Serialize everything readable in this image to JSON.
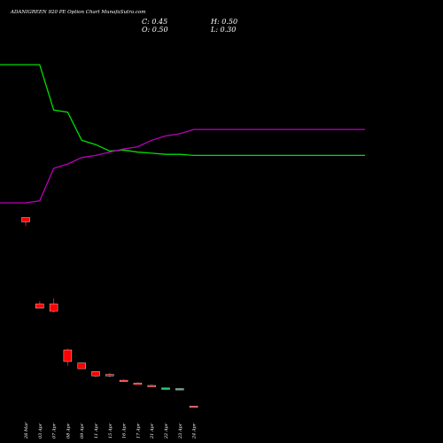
{
  "chart_data": {
    "type": "candlestick",
    "title": "ADANIGREEN 920 PE Option Chart MunafaSutra.com",
    "ohlc_summary": {
      "close_label": "C: 0.45",
      "high_label": "H: 0.50",
      "open_label": "O: 0.50",
      "low_label": "L: 0.30"
    },
    "categories": [
      "28 Mar",
      "03 Apr",
      "07 Apr",
      "08 Apr",
      "09 Apr",
      "11 Apr",
      "15 Apr",
      "16 Apr",
      "17 Apr",
      "21 Apr",
      "22 Apr",
      "23 Apr",
      "24 Apr"
    ],
    "candles": [
      {
        "date": "28 Mar",
        "open": 66.0,
        "high": 66.0,
        "low": 63.0,
        "close": 64.5
      },
      {
        "date": "03 Apr",
        "open": 36.0,
        "high": 37.0,
        "low": 34.5,
        "close": 34.5
      },
      {
        "date": "07 Apr",
        "open": 36.0,
        "high": 38.0,
        "low": 33.0,
        "close": 33.5
      },
      {
        "date": "08 Apr",
        "open": 20.0,
        "high": 20.5,
        "low": 14.5,
        "close": 16.0
      },
      {
        "date": "09 Apr",
        "open": 15.5,
        "high": 15.5,
        "low": 13.5,
        "close": 13.5
      },
      {
        "date": "11 Apr",
        "open": 12.5,
        "high": 12.5,
        "low": 10.5,
        "close": 11.0
      },
      {
        "date": "15 Apr",
        "open": 11.5,
        "high": 12.0,
        "low": 10.5,
        "close": 11.0
      },
      {
        "date": "16 Apr",
        "open": 9.5,
        "high": 9.8,
        "low": 9.0,
        "close": 9.2
      },
      {
        "date": "17 Apr",
        "open": 8.5,
        "high": 8.8,
        "low": 8.0,
        "close": 8.0
      },
      {
        "date": "21 Apr",
        "open": 7.7,
        "high": 8.0,
        "low": 7.3,
        "close": 7.6
      },
      {
        "date": "22 Apr",
        "open": 6.6,
        "high": 6.9,
        "low": 6.5,
        "close": 6.8
      },
      {
        "date": "23 Apr",
        "open": 6.4,
        "high": 6.7,
        "low": 6.2,
        "close": 6.6
      },
      {
        "date": "24 Apr",
        "open": 0.5,
        "high": 0.5,
        "low": 0.3,
        "close": 0.45
      }
    ],
    "series": [
      {
        "color": "#00dd00",
        "values": [
          100,
          100,
          79,
          78,
          65,
          63,
          60,
          60.5,
          59.5,
          59,
          58.5,
          58.5,
          58
        ]
      },
      {
        "color": "#bb00bb",
        "values": [
          36,
          37,
          52,
          54,
          57,
          58,
          59.5,
          61,
          62,
          65,
          67,
          68,
          70
        ]
      }
    ],
    "colors": {
      "background": "#000000",
      "up": "#00cc66",
      "down": "#ff0000",
      "text": "#ffffff"
    },
    "grid": false
  }
}
